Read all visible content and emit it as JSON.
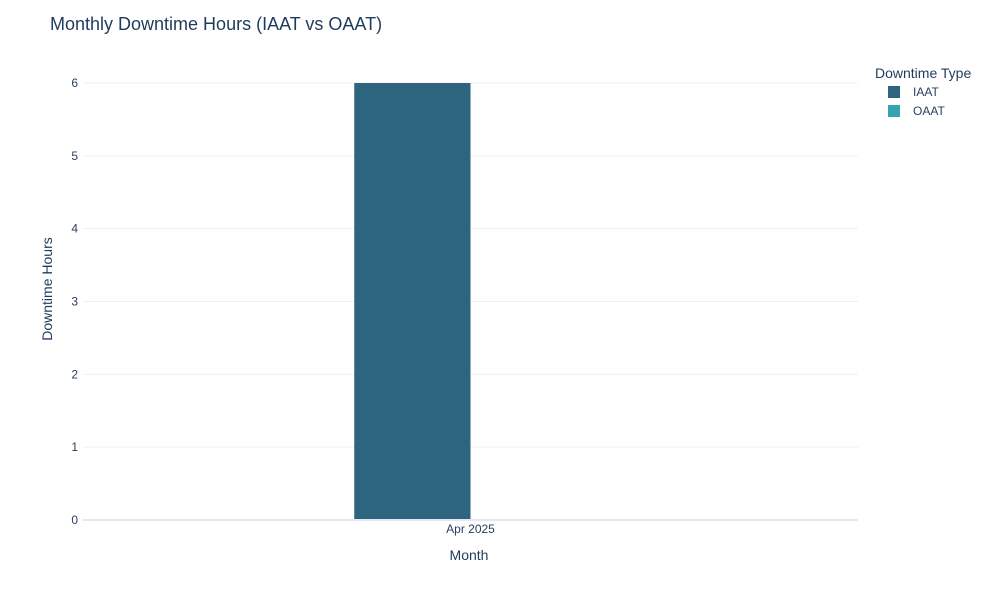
{
  "chart_data": {
    "type": "bar",
    "title": "Monthly Downtime Hours (IAAT vs OAAT)",
    "xlabel": "Month",
    "ylabel": "Downtime Hours",
    "categories": [
      "Apr 2025"
    ],
    "ylim": [
      0,
      6
    ],
    "yticks": [
      0,
      1,
      2,
      3,
      4,
      5,
      6
    ],
    "grid": true,
    "legend": {
      "title": "Downtime Type",
      "placement": "top-right"
    },
    "series": [
      {
        "name": "IAAT",
        "values": [
          6
        ],
        "color": "#2d657e"
      },
      {
        "name": "OAAT",
        "values": [
          0
        ],
        "color": "#35a3b0"
      }
    ]
  }
}
